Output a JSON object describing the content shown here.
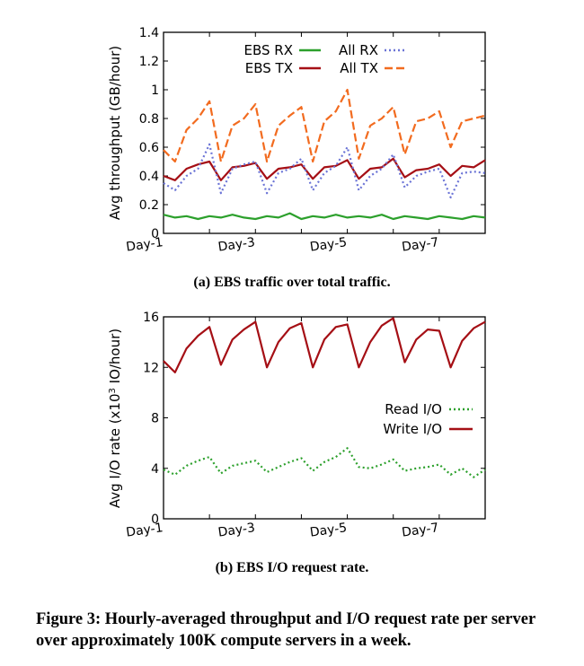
{
  "figure": {
    "caption": "Figure 3: Hourly-averaged throughput and I/O request rate per server over approximately 100K compute servers in a week."
  },
  "chart_data": [
    {
      "id": "a",
      "type": "line",
      "caption": "(a) EBS traffic over total traffic.",
      "xlabel": "",
      "ylabel": "Avg throughput (GB/hour)",
      "xlim": [
        0,
        168
      ],
      "ylim": [
        0,
        1.4
      ],
      "yticks": [
        0,
        0.2,
        0.4,
        0.6,
        0.8,
        1,
        1.2,
        1.4
      ],
      "ytick_labels": [
        "0",
        "0.2",
        "0.4",
        "0.6",
        "0.8",
        "1",
        "1.2",
        "1.4"
      ],
      "xticks": [
        0,
        48,
        96,
        144
      ],
      "xtick_labels": [
        "Day-1",
        "Day-3",
        "Day-5",
        "Day-7"
      ],
      "x_unit": "hours",
      "grid": false,
      "legend_position": "top",
      "series": [
        {
          "name": "EBS RX",
          "color": "#2ca02c",
          "style": "solid",
          "x": [
            0,
            6,
            12,
            18,
            24,
            30,
            36,
            42,
            48,
            54,
            60,
            66,
            72,
            78,
            84,
            90,
            96,
            102,
            108,
            114,
            120,
            126,
            132,
            138,
            144,
            150,
            156,
            162,
            168
          ],
          "values": [
            0.13,
            0.11,
            0.12,
            0.1,
            0.12,
            0.11,
            0.13,
            0.11,
            0.1,
            0.12,
            0.11,
            0.14,
            0.1,
            0.12,
            0.11,
            0.13,
            0.11,
            0.12,
            0.11,
            0.13,
            0.1,
            0.12,
            0.11,
            0.1,
            0.12,
            0.11,
            0.1,
            0.12,
            0.11
          ]
        },
        {
          "name": "EBS TX",
          "color": "#a50f15",
          "style": "solid",
          "x": [
            0,
            6,
            12,
            18,
            24,
            30,
            36,
            42,
            48,
            54,
            60,
            66,
            72,
            78,
            84,
            90,
            96,
            102,
            108,
            114,
            120,
            126,
            132,
            138,
            144,
            150,
            156,
            162,
            168
          ],
          "values": [
            0.4,
            0.37,
            0.45,
            0.48,
            0.5,
            0.37,
            0.46,
            0.47,
            0.49,
            0.38,
            0.45,
            0.46,
            0.48,
            0.38,
            0.46,
            0.47,
            0.51,
            0.38,
            0.45,
            0.46,
            0.52,
            0.39,
            0.44,
            0.45,
            0.48,
            0.4,
            0.47,
            0.46,
            0.51
          ]
        },
        {
          "name": "All RX",
          "color": "#6b74d6",
          "style": "dotted",
          "x": [
            0,
            6,
            12,
            18,
            24,
            30,
            36,
            42,
            48,
            54,
            60,
            66,
            72,
            78,
            84,
            90,
            96,
            102,
            108,
            114,
            120,
            126,
            132,
            138,
            144,
            150,
            156,
            162,
            168
          ],
          "values": [
            0.35,
            0.3,
            0.4,
            0.45,
            0.62,
            0.28,
            0.45,
            0.48,
            0.5,
            0.28,
            0.42,
            0.45,
            0.52,
            0.3,
            0.42,
            0.47,
            0.6,
            0.3,
            0.4,
            0.45,
            0.55,
            0.32,
            0.4,
            0.43,
            0.45,
            0.25,
            0.42,
            0.43,
            0.42
          ]
        },
        {
          "name": "All TX",
          "color": "#f26b1f",
          "style": "dashed",
          "x": [
            0,
            6,
            12,
            18,
            24,
            30,
            36,
            42,
            48,
            54,
            60,
            66,
            72,
            78,
            84,
            90,
            96,
            102,
            108,
            114,
            120,
            126,
            132,
            138,
            144,
            150,
            156,
            162,
            168
          ],
          "values": [
            0.58,
            0.5,
            0.72,
            0.8,
            0.92,
            0.5,
            0.75,
            0.8,
            0.9,
            0.5,
            0.75,
            0.82,
            0.88,
            0.5,
            0.78,
            0.85,
            1.0,
            0.52,
            0.75,
            0.8,
            0.88,
            0.55,
            0.78,
            0.8,
            0.85,
            0.6,
            0.78,
            0.8,
            0.82
          ]
        }
      ]
    },
    {
      "id": "b",
      "type": "line",
      "caption": "(b) EBS I/O request rate.",
      "xlabel": "",
      "ylabel": "Avg I/O rate (x10³ IO/hour)",
      "ylabel_parts": {
        "before": "Avg I/O rate (x10",
        "sup": "3",
        "after": " IO/hour)"
      },
      "xlim": [
        0,
        168
      ],
      "ylim": [
        0,
        16
      ],
      "yticks": [
        0,
        4,
        8,
        12,
        16
      ],
      "ytick_labels": [
        "0",
        "4",
        "8",
        "12",
        "16"
      ],
      "xticks": [
        0,
        48,
        96,
        144
      ],
      "xtick_labels": [
        "Day-1",
        "Day-3",
        "Day-5",
        "Day-7"
      ],
      "x_unit": "hours",
      "grid": false,
      "legend_position": "right",
      "series": [
        {
          "name": "Read I/O",
          "color": "#2ca02c",
          "style": "dotted",
          "x": [
            0,
            6,
            12,
            18,
            24,
            30,
            36,
            42,
            48,
            54,
            60,
            66,
            72,
            78,
            84,
            90,
            96,
            102,
            108,
            114,
            120,
            126,
            132,
            138,
            144,
            150,
            156,
            162,
            168
          ],
          "values": [
            3.9,
            3.5,
            4.2,
            4.6,
            4.9,
            3.6,
            4.2,
            4.4,
            4.6,
            3.7,
            4.1,
            4.5,
            4.8,
            3.8,
            4.5,
            4.9,
            5.6,
            4.1,
            4.0,
            4.3,
            4.7,
            3.8,
            4.0,
            4.1,
            4.3,
            3.5,
            4.0,
            3.3,
            3.9
          ]
        },
        {
          "name": "Write I/O",
          "color": "#a50f15",
          "style": "solid",
          "x": [
            0,
            6,
            12,
            18,
            24,
            30,
            36,
            42,
            48,
            54,
            60,
            66,
            72,
            78,
            84,
            90,
            96,
            102,
            108,
            114,
            120,
            126,
            132,
            138,
            144,
            150,
            156,
            162,
            168
          ],
          "values": [
            12.5,
            11.6,
            13.5,
            14.5,
            15.2,
            12.2,
            14.2,
            15.0,
            15.6,
            12.0,
            14.0,
            15.1,
            15.5,
            12.0,
            14.2,
            15.2,
            15.4,
            12.0,
            14.0,
            15.3,
            15.9,
            12.4,
            14.2,
            15.0,
            14.9,
            12.0,
            14.1,
            15.1,
            15.6
          ]
        }
      ]
    }
  ]
}
